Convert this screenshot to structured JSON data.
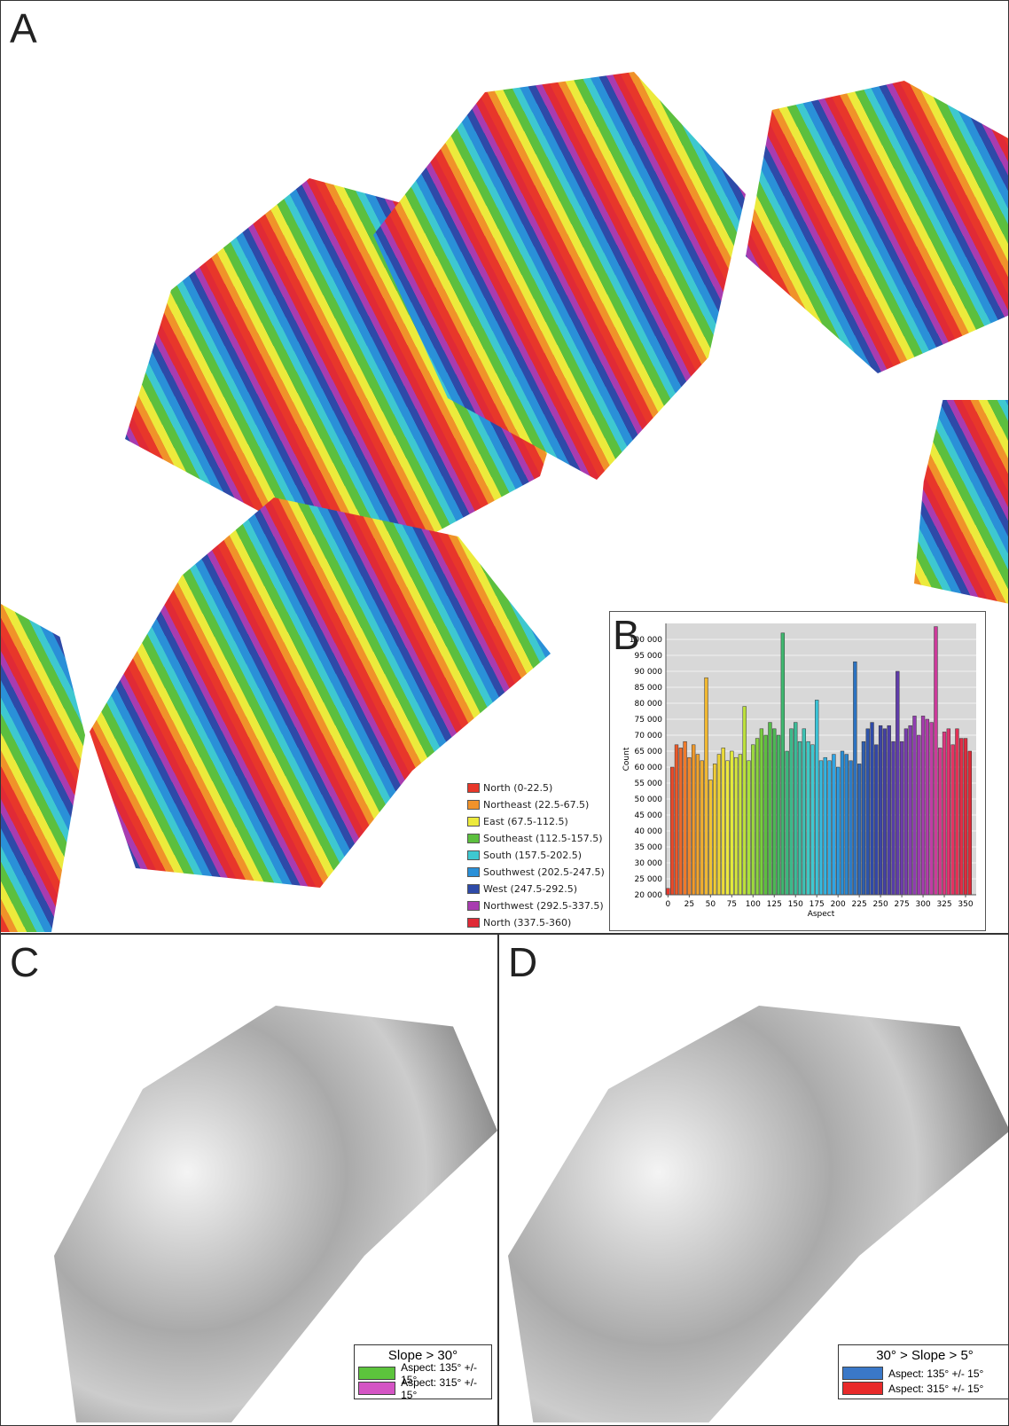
{
  "panels": {
    "a": "A",
    "b": "B",
    "c": "C",
    "d": "D"
  },
  "legend_a": [
    {
      "label": "North (0-22.5)",
      "color": "#e8372a"
    },
    {
      "label": "Northeast (22.5-67.5)",
      "color": "#f0922a"
    },
    {
      "label": "East (67.5-112.5)",
      "color": "#ecea3c"
    },
    {
      "label": "Southeast (112.5-157.5)",
      "color": "#5cbf3e"
    },
    {
      "label": "South (157.5-202.5)",
      "color": "#3ec8d0"
    },
    {
      "label": "Southwest (202.5-247.5)",
      "color": "#2a90d8"
    },
    {
      "label": "West (247.5-292.5)",
      "color": "#2e4aa8"
    },
    {
      "label": "Northwest (292.5-337.5)",
      "color": "#a83cb0"
    },
    {
      "label": "North (337.5-360)",
      "color": "#e02a36"
    }
  ],
  "chart_data": {
    "type": "bar",
    "x_label": "Aspect",
    "y_label": "Count",
    "x": [
      0,
      5,
      10,
      15,
      20,
      25,
      30,
      35,
      40,
      45,
      50,
      55,
      60,
      65,
      70,
      75,
      80,
      85,
      90,
      95,
      100,
      105,
      110,
      115,
      120,
      125,
      130,
      135,
      140,
      145,
      150,
      155,
      160,
      165,
      170,
      175,
      180,
      185,
      190,
      195,
      200,
      205,
      210,
      215,
      220,
      225,
      230,
      235,
      240,
      245,
      250,
      255,
      260,
      265,
      270,
      275,
      280,
      285,
      290,
      295,
      300,
      305,
      310,
      315,
      320,
      325,
      330,
      335,
      340,
      345,
      350,
      355
    ],
    "values": [
      22000,
      60000,
      67000,
      66000,
      68000,
      63000,
      67000,
      64000,
      62000,
      88000,
      56000,
      61000,
      64000,
      66000,
      62000,
      65000,
      63000,
      64000,
      79000,
      62000,
      67000,
      69000,
      72000,
      70000,
      74000,
      72000,
      70000,
      102000,
      65000,
      72000,
      74000,
      68000,
      72000,
      68000,
      67000,
      81000,
      62000,
      63000,
      62000,
      64000,
      60000,
      65000,
      64000,
      62000,
      93000,
      61000,
      68000,
      72000,
      74000,
      67000,
      73000,
      72000,
      73000,
      68000,
      90000,
      68000,
      72000,
      73000,
      76000,
      70000,
      76000,
      75000,
      74000,
      104000,
      66000,
      71000,
      72000,
      67000,
      72000,
      69000,
      69000,
      65000
    ],
    "colors": [
      "#e8372a",
      "#ea4a2a",
      "#ec5a2a",
      "#ee6a2a",
      "#f07a2a",
      "#f0862a",
      "#f09a2c",
      "#f0a42e",
      "#f0ae30",
      "#f0b832",
      "#f0c234",
      "#f0cc36",
      "#eed438",
      "#ecdc3a",
      "#ecea3c",
      "#e2ea3c",
      "#d6e83c",
      "#c8e43c",
      "#bce03c",
      "#ace03c",
      "#9cd83e",
      "#8ad43e",
      "#78ce3e",
      "#5cbf3e",
      "#54bc48",
      "#4cba54",
      "#46b862",
      "#40b870",
      "#3cb87c",
      "#3cba8a",
      "#3cbc98",
      "#3ec0a6",
      "#3ec4b6",
      "#3ec8c4",
      "#3ec8d0",
      "#3cc4d8",
      "#38bce0",
      "#34b4e2",
      "#30ace4",
      "#2ea4e4",
      "#2a9ce2",
      "#2a90d8",
      "#2a86d0",
      "#2c7cc8",
      "#2c72c0",
      "#2e68b8",
      "#2e5eb0",
      "#2e54ac",
      "#2e4aa8",
      "#3446a6",
      "#3c44a4",
      "#4440a4",
      "#4c3ea6",
      "#563ca8",
      "#603caa",
      "#6c3cac",
      "#783cae",
      "#843cae",
      "#903cb0",
      "#9c3cb0",
      "#a83cb0",
      "#b43cac",
      "#c03ca4",
      "#cc3a9a",
      "#d6388e",
      "#de3680",
      "#e23470",
      "#e43262",
      "#e43054",
      "#e22e48",
      "#e02c3e",
      "#e02a36"
    ],
    "xlim": [
      -2.5,
      362.5
    ],
    "ylim": [
      20000,
      105000
    ],
    "xticks": [
      0,
      25,
      50,
      75,
      100,
      125,
      150,
      175,
      200,
      225,
      250,
      275,
      300,
      325,
      350
    ],
    "yticks": [
      {
        "value": 20000,
        "label": "20 000"
      },
      {
        "value": 25000,
        "label": "25 000"
      },
      {
        "value": 30000,
        "label": "30 000"
      },
      {
        "value": 35000,
        "label": "35 000"
      },
      {
        "value": 40000,
        "label": "40 000"
      },
      {
        "value": 45000,
        "label": "45 000"
      },
      {
        "value": 50000,
        "label": "50 000"
      },
      {
        "value": 55000,
        "label": "55 000"
      },
      {
        "value": 60000,
        "label": "60 000"
      },
      {
        "value": 65000,
        "label": "65 000"
      },
      {
        "value": 70000,
        "label": "70 000"
      },
      {
        "value": 75000,
        "label": "75 000"
      },
      {
        "value": 80000,
        "label": "80 000"
      },
      {
        "value": 85000,
        "label": "85 000"
      },
      {
        "value": 90000,
        "label": "90 000"
      },
      {
        "value": 95000,
        "label": "95 000"
      },
      {
        "value": 100000,
        "label": "100 000"
      }
    ],
    "grid": true
  },
  "legend_c": {
    "title": "Slope > 30°",
    "items": [
      {
        "label": "Aspect: 135° +/- 15°",
        "color": "#5cc43c"
      },
      {
        "label": "Aspect: 315° +/- 15°",
        "color": "#d454c4"
      }
    ]
  },
  "legend_d": {
    "title": "30° > Slope > 5°",
    "items": [
      {
        "label": "Aspect: 135° +/- 15°",
        "color": "#3a78c8"
      },
      {
        "label": "Aspect: 315° +/- 15°",
        "color": "#e82a2a"
      }
    ]
  }
}
